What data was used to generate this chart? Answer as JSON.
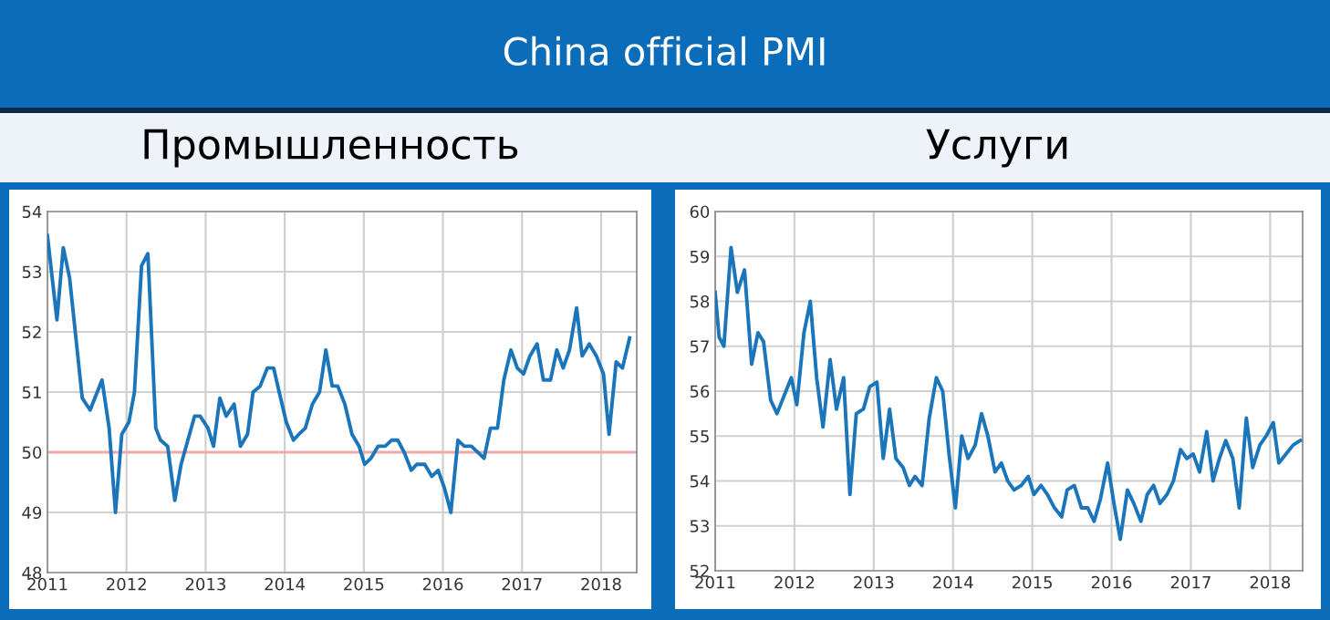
{
  "chart_data": [
    {
      "type": "line",
      "title": "China official PMI",
      "subtitle": "Промышленность",
      "series": [
        {
          "color": "#1b75bb",
          "x": [
            2011.0,
            2011.12,
            2011.2,
            2011.28,
            2011.44,
            2011.54,
            2011.69,
            2011.78,
            2011.86,
            2011.94,
            2012.03,
            2012.1,
            2012.19,
            2012.27,
            2012.37,
            2012.43,
            2012.52,
            2012.61,
            2012.69,
            2012.86,
            2012.93,
            2013.03,
            2013.1,
            2013.18,
            2013.26,
            2013.36,
            2013.44,
            2013.53,
            2013.6,
            2013.69,
            2013.78,
            2013.86,
            2013.93,
            2014.02,
            2014.11,
            2014.18,
            2014.26,
            2014.35,
            2014.44,
            2014.52,
            2014.6,
            2014.67,
            2014.76,
            2014.85,
            2014.94,
            2015.01,
            2015.09,
            2015.18,
            2015.27,
            2015.35,
            2015.43,
            2015.51,
            2015.6,
            2015.67,
            2015.77,
            2015.86,
            2015.94,
            2016.02,
            2016.1,
            2016.19,
            2016.27,
            2016.36,
            2016.52,
            2016.6,
            2016.69,
            2016.77,
            2016.86,
            2016.94,
            2017.02,
            2017.1,
            2017.19,
            2017.27,
            2017.36,
            2017.44,
            2017.52,
            2017.6,
            2017.69,
            2017.76,
            2017.85,
            2017.94,
            2018.03,
            2018.1,
            2018.19,
            2018.27,
            2018.36
          ],
          "values": [
            53.6,
            52.2,
            53.4,
            52.9,
            50.9,
            50.7,
            51.2,
            50.4,
            49.0,
            50.3,
            50.5,
            51.0,
            53.1,
            53.3,
            50.4,
            50.2,
            50.1,
            49.2,
            49.8,
            50.6,
            50.6,
            50.4,
            50.1,
            50.9,
            50.6,
            50.8,
            50.1,
            50.3,
            51.0,
            51.1,
            51.4,
            51.4,
            51.0,
            50.5,
            50.2,
            50.3,
            50.4,
            50.8,
            51.0,
            51.7,
            51.1,
            51.1,
            50.8,
            50.3,
            50.1,
            49.8,
            49.9,
            50.1,
            50.1,
            50.2,
            50.2,
            50.0,
            49.7,
            49.8,
            49.8,
            49.6,
            49.7,
            49.4,
            49.0,
            50.2,
            50.1,
            50.1,
            49.9,
            50.4,
            50.4,
            51.2,
            51.7,
            51.4,
            51.3,
            51.6,
            51.8,
            51.2,
            51.2,
            51.7,
            51.4,
            51.7,
            52.4,
            51.6,
            51.8,
            51.6,
            51.3,
            50.3,
            51.5,
            51.4,
            51.9
          ]
        }
      ],
      "xlim": [
        2011,
        2018.45
      ],
      "xticks": [
        2011,
        2012,
        2013,
        2014,
        2015,
        2016,
        2017,
        2018
      ],
      "ylim": [
        48,
        54
      ],
      "yticks": [
        48,
        49,
        50,
        51,
        52,
        53,
        54
      ],
      "grid": true,
      "marker": "none",
      "line_style": "solid",
      "ref_lines": [
        {
          "axis": "y",
          "value": 50,
          "color": "#f0a8a8"
        }
      ]
    },
    {
      "type": "line",
      "subtitle": "Услуги",
      "series": [
        {
          "color": "#1b75bb",
          "x": [
            2011.0,
            2011.05,
            2011.11,
            2011.2,
            2011.28,
            2011.37,
            2011.46,
            2011.54,
            2011.61,
            2011.7,
            2011.78,
            2011.96,
            2012.03,
            2012.12,
            2012.2,
            2012.28,
            2012.36,
            2012.45,
            2012.53,
            2012.62,
            2012.7,
            2012.78,
            2012.87,
            2012.95,
            2013.04,
            2013.12,
            2013.2,
            2013.28,
            2013.37,
            2013.45,
            2013.52,
            2013.61,
            2013.7,
            2013.79,
            2013.87,
            2013.95,
            2014.03,
            2014.11,
            2014.19,
            2014.28,
            2014.36,
            2014.44,
            2014.53,
            2014.61,
            2014.69,
            2014.77,
            2014.86,
            2014.95,
            2015.02,
            2015.11,
            2015.19,
            2015.28,
            2015.37,
            2015.44,
            2015.53,
            2015.62,
            2015.7,
            2015.78,
            2015.86,
            2015.95,
            2016.03,
            2016.11,
            2016.2,
            2016.28,
            2016.37,
            2016.45,
            2016.53,
            2016.61,
            2016.7,
            2016.78,
            2016.87,
            2016.95,
            2017.03,
            2017.11,
            2017.2,
            2017.28,
            2017.36,
            2017.44,
            2017.53,
            2017.61,
            2017.7,
            2017.78,
            2017.87,
            2017.95,
            2018.04,
            2018.11,
            2018.2,
            2018.29,
            2018.38
          ],
          "values": [
            58.2,
            57.2,
            57.0,
            59.2,
            58.2,
            58.7,
            56.6,
            57.3,
            57.1,
            55.8,
            55.5,
            56.3,
            55.7,
            57.3,
            58.0,
            56.3,
            55.2,
            56.7,
            55.6,
            56.3,
            53.7,
            55.5,
            55.6,
            56.1,
            56.2,
            54.5,
            55.6,
            54.5,
            54.3,
            53.9,
            54.1,
            53.9,
            55.4,
            56.3,
            56.0,
            54.6,
            53.4,
            55.0,
            54.5,
            54.8,
            55.5,
            55.0,
            54.2,
            54.4,
            54.0,
            53.8,
            53.9,
            54.1,
            53.7,
            53.9,
            53.7,
            53.4,
            53.2,
            53.8,
            53.9,
            53.4,
            53.4,
            53.1,
            53.6,
            54.4,
            53.5,
            52.7,
            53.8,
            53.5,
            53.1,
            53.7,
            53.9,
            53.5,
            53.7,
            54.0,
            54.7,
            54.5,
            54.6,
            54.2,
            55.1,
            54.0,
            54.5,
            54.9,
            54.5,
            53.4,
            55.4,
            54.3,
            54.8,
            55.0,
            55.3,
            54.4,
            54.6,
            54.8,
            54.9
          ]
        }
      ],
      "xlim": [
        2011,
        2018.41
      ],
      "xticks": [
        2011,
        2012,
        2013,
        2014,
        2015,
        2016,
        2017,
        2018
      ],
      "ylim": [
        52,
        60
      ],
      "yticks": [
        52,
        53,
        54,
        55,
        56,
        57,
        58,
        59,
        60
      ],
      "grid": true,
      "marker": "none",
      "line_style": "solid"
    }
  ]
}
